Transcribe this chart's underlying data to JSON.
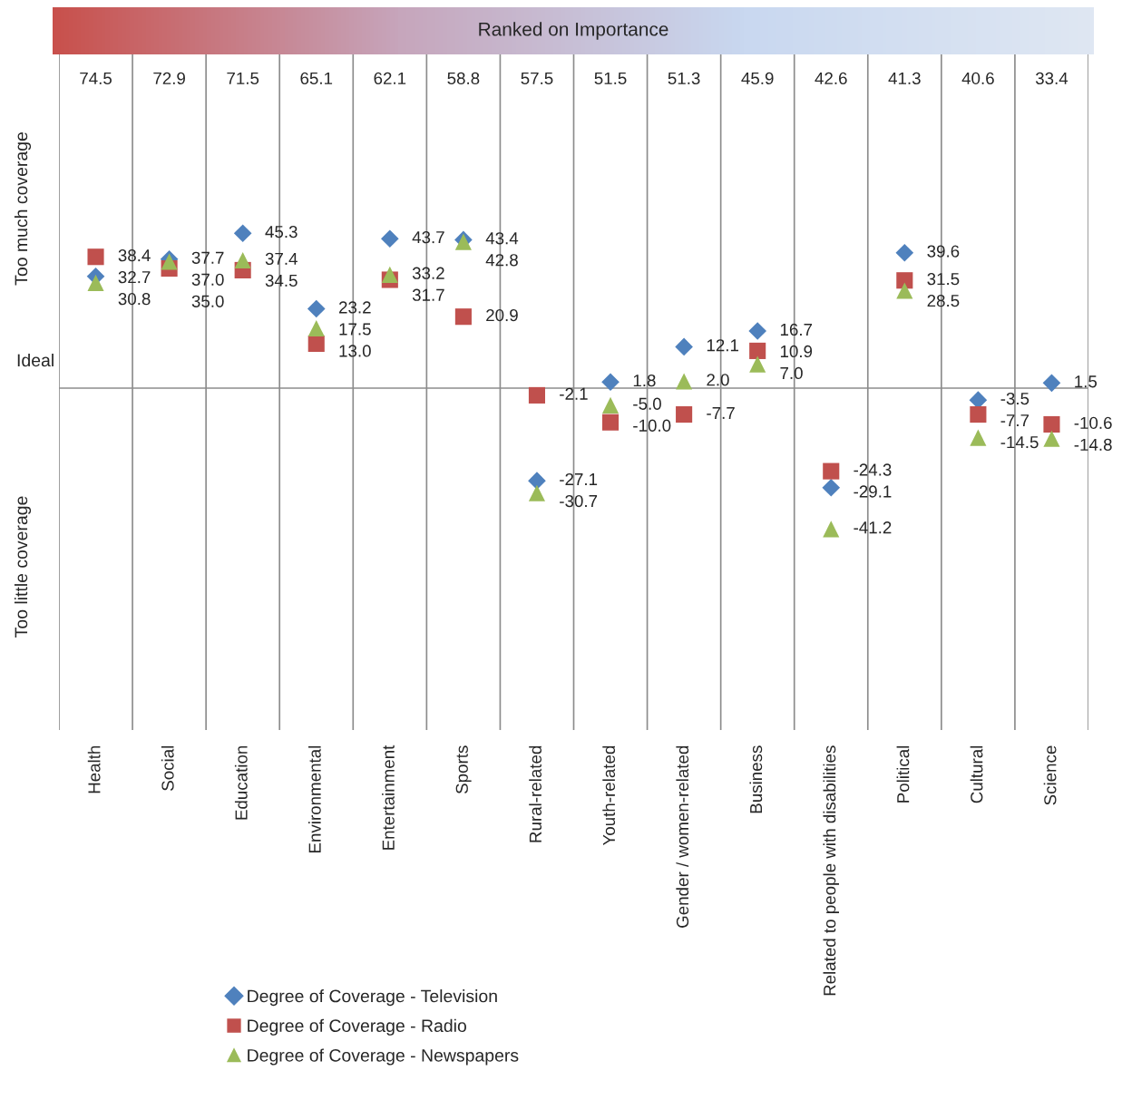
{
  "chart_data": {
    "type": "scatter",
    "title": "Ranked on Importance",
    "categories": [
      "Health",
      "Social",
      "Education",
      "Environmental",
      "Entertainment",
      "Sports",
      "Rural-related",
      "Youth-related",
      "Gender / women-related",
      "Business",
      "Related to people with disabilities",
      "Political",
      "Cultural",
      "Science"
    ],
    "series": [
      {
        "name": "Degree of Coverage - Television",
        "color": "#4f81bd",
        "marker": "diamond",
        "values": [
          32.7,
          37.7,
          45.3,
          23.2,
          43.7,
          43.4,
          -27.1,
          1.8,
          12.1,
          16.7,
          -29.1,
          39.6,
          -3.5,
          1.5
        ],
        "value_labels": [
          "32.7",
          "37.7",
          "45.3",
          "23.2",
          "43.7",
          "43.4",
          "-27.1",
          "1.8",
          "12.1",
          "16.7",
          "-29.1",
          "39.6",
          "-3.5",
          "1.5"
        ]
      },
      {
        "name": "Degree of Coverage - Radio",
        "color": "#c0504d",
        "marker": "square",
        "values": [
          38.4,
          35.0,
          34.5,
          13.0,
          31.7,
          20.9,
          -2.1,
          -10.0,
          -7.7,
          10.9,
          -24.3,
          31.5,
          -7.7,
          -10.6
        ],
        "value_labels": [
          "38.4",
          "35.0",
          "34.5",
          "13.0",
          "31.7",
          "20.9",
          "-2.1",
          "-10.0",
          "-7.7",
          "10.9",
          "-24.3",
          "31.5",
          "-7.7",
          "-10.6"
        ]
      },
      {
        "name": "Degree of Coverage - Newspapers",
        "color": "#9bbb59",
        "marker": "triangle",
        "values": [
          30.8,
          37.0,
          37.4,
          17.5,
          33.2,
          42.8,
          -30.7,
          -5.0,
          2.0,
          7.0,
          -41.2,
          28.5,
          -14.5,
          -14.8
        ],
        "value_labels": [
          "30.8",
          "37.0",
          "37.4",
          "17.5",
          "33.2",
          "42.8",
          "-30.7",
          "-5.0",
          "2.0",
          "7.0",
          "-41.2",
          "28.5",
          "-14.5",
          "-14.8"
        ]
      }
    ],
    "annotations": [
      "Too much coverage",
      "Ideal",
      "Too little coverage",
      "74.5",
      "72.9",
      "71.5",
      "65.1",
      "62.1",
      "58.8",
      "57.5",
      "51.5",
      "51.3",
      "45.9",
      "42.6",
      "41.3",
      "40.6",
      "33.4"
    ],
    "ylim": [
      -100,
      100
    ],
    "tick_labels": "x",
    "grid": "x",
    "legend": "bottom left"
  }
}
